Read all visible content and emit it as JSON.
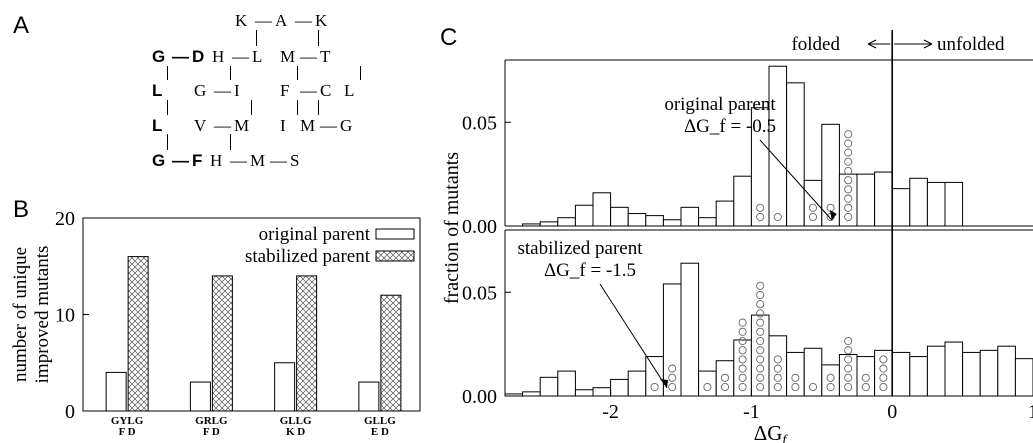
{
  "panels": {
    "a": "A",
    "b": "B",
    "c": "C"
  },
  "lattice": {
    "rows": [
      [
        {
          "t": "K"
        },
        {
          "t": "—"
        },
        {
          "t": "A"
        },
        {
          "t": "—"
        },
        {
          "t": "K"
        }
      ],
      [
        {
          "t": "G",
          "b": true
        },
        {
          "t": "—",
          "b": true
        },
        {
          "t": "D",
          "b": true
        },
        {
          "t": "H"
        },
        {
          "t": "—"
        },
        {
          "t": "L"
        },
        {
          "t": "M"
        },
        {
          "t": "—"
        },
        {
          "t": "T"
        }
      ],
      [
        {
          "t": "L",
          "b": true
        },
        {
          "t": "G"
        },
        {
          "t": "—"
        },
        {
          "t": "I"
        },
        {
          "t": "F"
        },
        {
          "t": "—"
        },
        {
          "t": "C"
        },
        {
          "t": "L"
        }
      ],
      [
        {
          "t": "L",
          "b": true
        },
        {
          "t": "V"
        },
        {
          "t": "—"
        },
        {
          "t": "M"
        },
        {
          "t": "I"
        },
        {
          "t": "M"
        },
        {
          "t": "—"
        },
        {
          "t": "G"
        }
      ],
      [
        {
          "t": "G",
          "b": true
        },
        {
          "t": "—",
          "b": true
        },
        {
          "t": "F",
          "b": true
        },
        {
          "t": "H"
        },
        {
          "t": "—"
        },
        {
          "t": "M"
        },
        {
          "t": "—"
        },
        {
          "t": "S"
        }
      ]
    ]
  },
  "chart_data": [
    {
      "type": "bar",
      "panel": "B",
      "ylabel": "number of unique improved mutants",
      "ylim": [
        0,
        20
      ],
      "yticks": [
        0,
        10,
        20
      ],
      "categories": [
        {
          "top": "GYLG",
          "bottom": "F   D"
        },
        {
          "top": "GRLG",
          "bottom": "F   D"
        },
        {
          "top": "GLLG",
          "bottom": "K   D"
        },
        {
          "top": "GLLG",
          "bottom": "E   D"
        }
      ],
      "series": [
        {
          "name": "original parent",
          "values": [
            4,
            3,
            5,
            3
          ]
        },
        {
          "name": "stabilized parent",
          "values": [
            16,
            14,
            14,
            12
          ]
        }
      ],
      "legend": "top-right"
    },
    {
      "type": "bar",
      "panel": "C",
      "ylabel": "fraction of mutants",
      "xlabel": "ΔG_f",
      "xlim": [
        -2.75,
        1.0
      ],
      "xticks": [
        -2,
        -1,
        0,
        1
      ],
      "bin_width": 0.125,
      "header": {
        "left": "folded",
        "right": "unfolded"
      },
      "subplots": [
        {
          "name": "original parent",
          "annotation": [
            "original parent",
            "ΔG_f = -0.5"
          ],
          "annotation_x": -0.5,
          "ylim": [
            0,
            0.08
          ],
          "yticks": [
            "0.00",
            "0.05"
          ],
          "bins_start": -2.625,
          "values": [
            0.001,
            0.002,
            0.004,
            0.01,
            0.016,
            0.009,
            0.006,
            0.005,
            0.003,
            0.009,
            0.004,
            0.012,
            0.024,
            0.057,
            0.077,
            0.069,
            0.022,
            0.049,
            0.025,
            0.025,
            0.026,
            0.018,
            0.023,
            0.021,
            0.021
          ],
          "circles": [
            0,
            0,
            0,
            0,
            0,
            0,
            0,
            0,
            0,
            0,
            0,
            0,
            0,
            2,
            1,
            0,
            2,
            2,
            10,
            0,
            0,
            0,
            0,
            0,
            0
          ]
        },
        {
          "name": "stabilized parent",
          "annotation": [
            "stabilized parent",
            "ΔG_f = -1.5"
          ],
          "annotation_x": -1.5,
          "ylim": [
            0,
            0.08
          ],
          "yticks": [
            "0.00",
            "0.05"
          ],
          "bins_start": -2.75,
          "values": [
            0.001,
            0.002,
            0.009,
            0.012,
            0.003,
            0.004,
            0.008,
            0.012,
            0.019,
            0.054,
            0.064,
            0.012,
            0.017,
            0.027,
            0.039,
            0.029,
            0.021,
            0.023,
            0.015,
            0.02,
            0.019,
            0.022,
            0.021,
            0.019,
            0.024,
            0.026,
            0.021,
            0.022,
            0.024,
            0.018,
            0.021
          ],
          "circles": [
            0,
            0,
            0,
            0,
            0,
            0,
            0,
            0,
            1,
            3,
            0,
            1,
            2,
            8,
            12,
            4,
            2,
            1,
            2,
            6,
            2,
            4,
            0,
            0,
            0,
            0,
            0,
            0,
            0,
            0,
            0
          ]
        }
      ]
    }
  ]
}
